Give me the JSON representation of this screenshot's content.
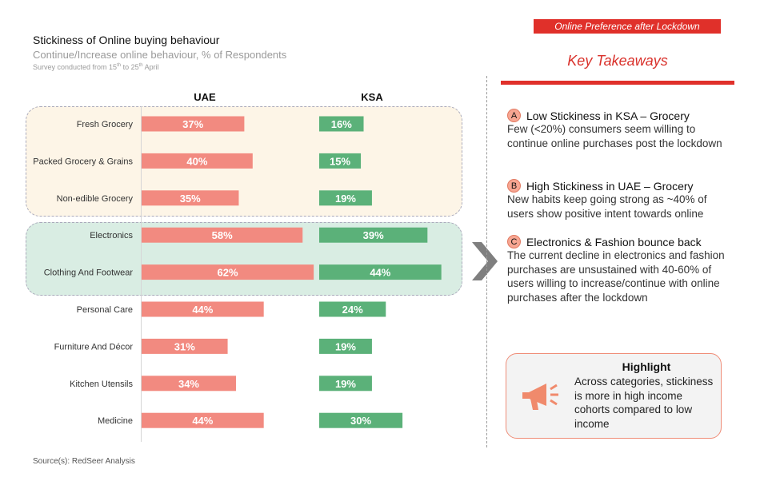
{
  "header": {
    "title": "Stickiness of Online buying behaviour",
    "subtitle": "Continue/Increase online behaviour, % of Respondents",
    "note_prefix": "Survey conducted from 15",
    "note_sup1": "th",
    "note_mid": " to 25",
    "note_sup2": "th",
    "note_suffix": " April"
  },
  "chart_data": {
    "type": "bar",
    "orientation": "horizontal",
    "categories": [
      "Fresh Grocery",
      "Packed Grocery & Grains",
      "Non-edible Grocery",
      "Electronics",
      "Clothing And Footwear",
      "Personal Care",
      "Furniture And Décor",
      "Kitchen Utensils",
      "Medicine"
    ],
    "series": [
      {
        "name": "UAE",
        "values": [
          37,
          40,
          35,
          58,
          62,
          44,
          31,
          34,
          44
        ],
        "labels": [
          "37%",
          "40%",
          "35%",
          "58%",
          "62%",
          "44%",
          "31%",
          "34%",
          "44%"
        ],
        "color": "#f28a80"
      },
      {
        "name": "KSA",
        "values": [
          16,
          15,
          19,
          39,
          44,
          24,
          19,
          19,
          30
        ],
        "labels": [
          "16%",
          "15%",
          "19%",
          "39%",
          "44%",
          "24%",
          "19%",
          "19%",
          "30%"
        ],
        "color": "#5bb179"
      }
    ],
    "groups": [
      {
        "categories": [
          "Fresh Grocery",
          "Packed Grocery & Grains",
          "Non-edible Grocery"
        ],
        "color": "#fdf5e7"
      },
      {
        "categories": [
          "Electronics",
          "Clothing And Footwear"
        ],
        "color": "#d9ede3"
      }
    ]
  },
  "source": "Source(s): RedSeer Analysis",
  "sidebar": {
    "banner": "Online Preference after Lockdown",
    "heading": "Key Takeaways",
    "accent": "#e0302a",
    "takeaways": [
      {
        "badge": "A",
        "title": "Low Stickiness in KSA – Grocery",
        "body": "Few (<20%) consumers seem willing to continue online purchases post the lockdown"
      },
      {
        "badge": "B",
        "title": "High Stickiness in UAE – Grocery",
        "body": "New habits keep going strong as ~40% of users show positive intent towards online"
      },
      {
        "badge": "C",
        "title": "Electronics & Fashion bounce back",
        "body": "The current decline in electronics and fashion purchases are unsustained with 40-60% of users willing to increase/continue with online purchases after the lockdown"
      }
    ],
    "highlight": {
      "title": "Highlight",
      "body": "Across categories, stickiness is more in high income cohorts compared to low income",
      "icon": "megaphone-icon"
    }
  }
}
